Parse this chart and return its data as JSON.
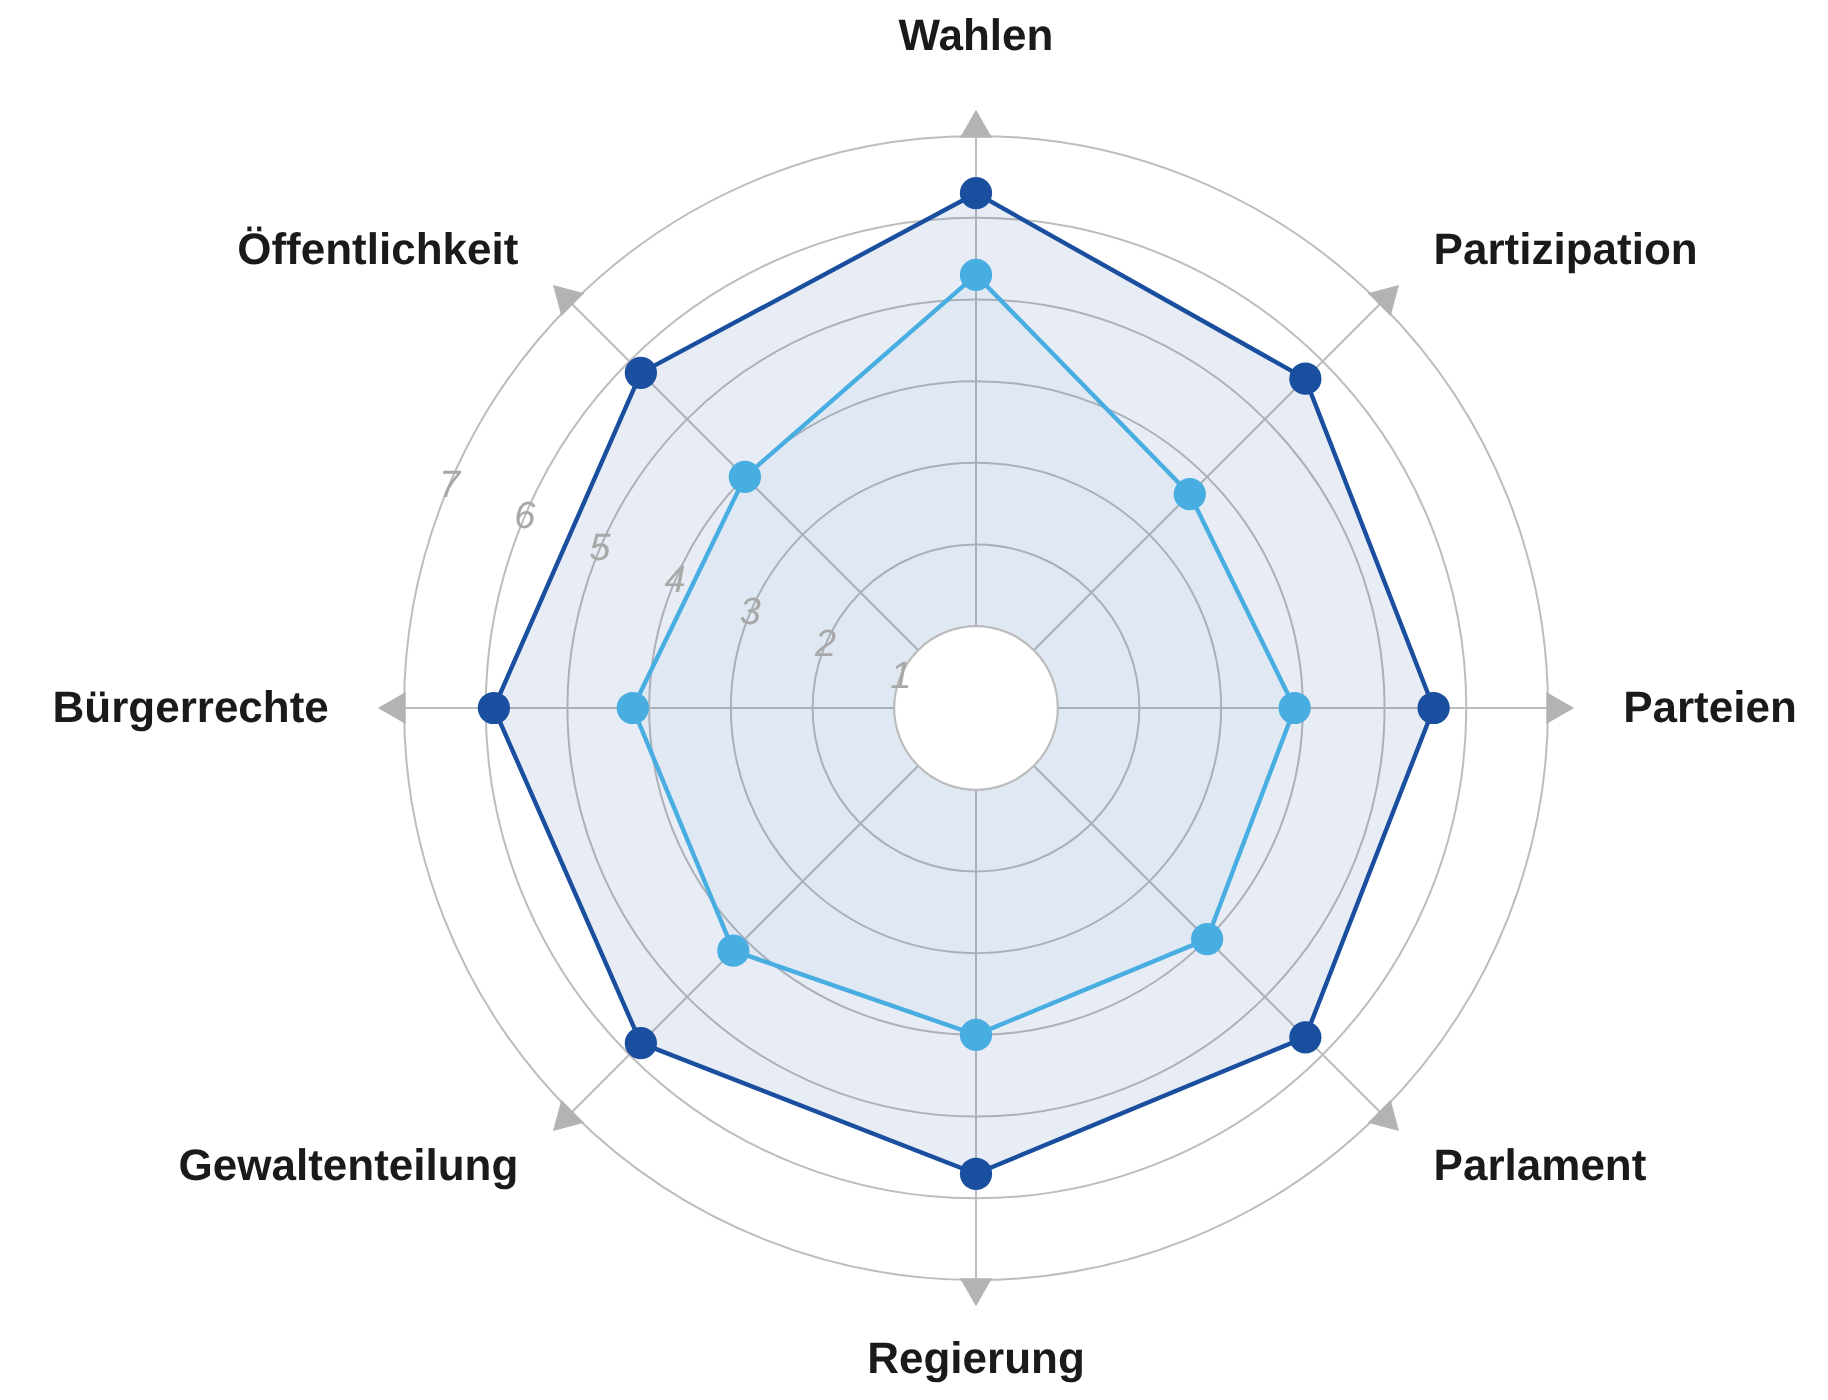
{
  "chart_data": {
    "type": "radar",
    "categories": [
      "Wahlen",
      "Partizipation",
      "Parteien",
      "Parlament",
      "Regierung",
      "Gewaltenteilung",
      "Bürgerrechte",
      "Öffentlichkeit"
    ],
    "series": [
      {
        "color": "#1a4f9f",
        "values": [
          6.3,
          5.7,
          5.6,
          5.7,
          5.7,
          5.8,
          5.9,
          5.8
        ]
      },
      {
        "color": "#48ade0",
        "values": [
          5.3,
          3.7,
          3.9,
          4.0,
          4.0,
          4.2,
          4.2,
          4.0
        ]
      }
    ],
    "ylim": [
      0,
      7
    ],
    "yticks": [
      1,
      2,
      3,
      4,
      5,
      6,
      7
    ],
    "grid": true,
    "marker": "circle",
    "line_style": "solid"
  }
}
